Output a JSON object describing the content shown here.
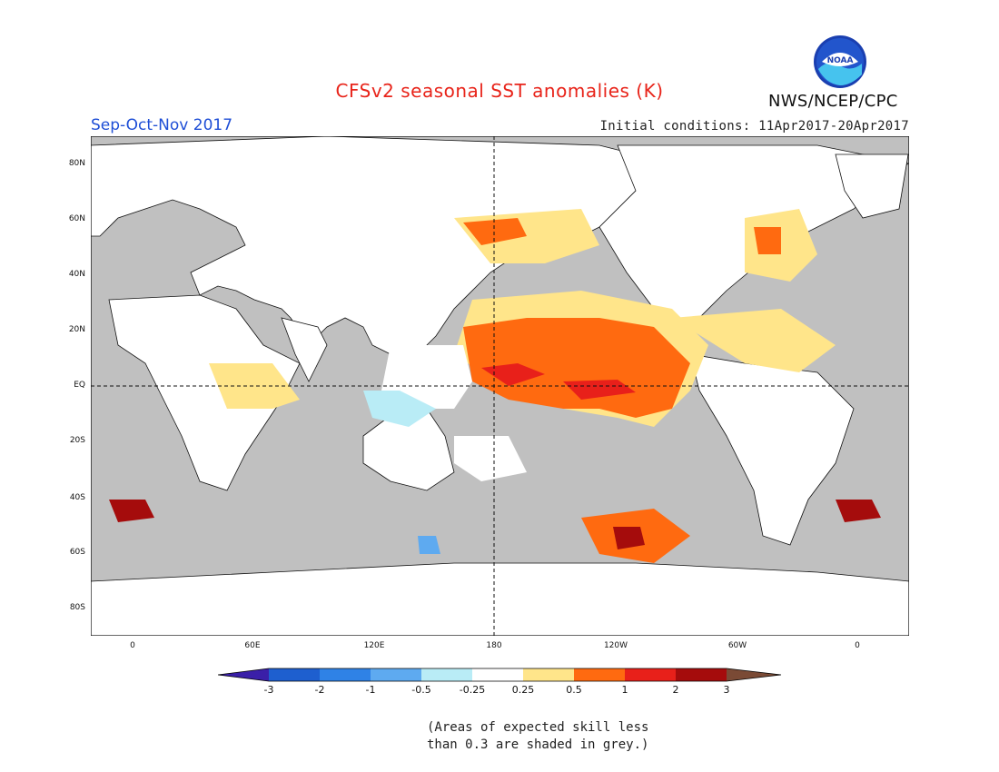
{
  "title": "CFSv2 seasonal SST anomalies (K)",
  "season": "Sep-Oct-Nov 2017",
  "initial_conditions": "Initial conditions: 11Apr2017-20Apr2017",
  "agency": "NWS/NCEP/CPC",
  "logo_text": "NOAA",
  "lat_labels": [
    "80N",
    "60N",
    "40N",
    "20N",
    "EQ",
    "20S",
    "40S",
    "60S",
    "80S"
  ],
  "lon_labels": [
    "0",
    "60E",
    "120E",
    "180",
    "120W",
    "60W",
    "0"
  ],
  "colorbar": {
    "labels": [
      "-3",
      "-2",
      "-1",
      "-0.5",
      "-0.25",
      "0.25",
      "0.5",
      "1",
      "2",
      "3"
    ],
    "colors": [
      "#3a1fa8",
      "#1e5fcf",
      "#2f82e6",
      "#5eaaf0",
      "#b9ecf6",
      "#ffffff",
      "#ffe58a",
      "#ff6a10",
      "#e8201a",
      "#a50c0c",
      "#7a4a35"
    ]
  },
  "note_lines": [
    "(Areas of expected skill less",
    "than 0.3 are shaded in grey.)"
  ],
  "colors": {
    "ocean_grey": "#c0c0c0",
    "land": "#ffffff",
    "warm": "#ff6a10",
    "title": "#e8241a",
    "season": "#1f4fd6"
  }
}
